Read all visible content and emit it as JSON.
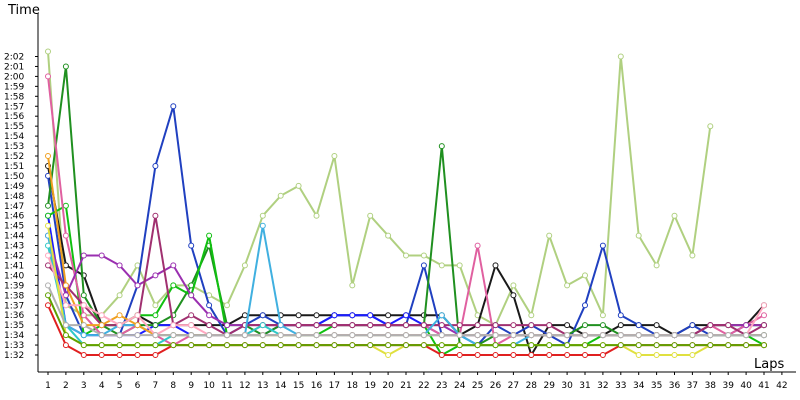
{
  "chart_data": {
    "type": "line",
    "title": "",
    "ylabel": "Time",
    "xlabel": "Laps",
    "x_ticks": [
      "1",
      "2",
      "3",
      "4",
      "5",
      "6",
      "7",
      "8",
      "9",
      "10",
      "11",
      "12",
      "13",
      "14",
      "15",
      "16",
      "17",
      "18",
      "19",
      "20",
      "21",
      "22",
      "23",
      "24",
      "25",
      "26",
      "27",
      "28",
      "29",
      "30",
      "31",
      "32",
      "33",
      "34",
      "35",
      "36",
      "37",
      "38",
      "39",
      "40",
      "41",
      "42"
    ],
    "y_ticks": [
      "1:32",
      "1:33",
      "1:34",
      "1:35",
      "1:36",
      "1:37",
      "1:38",
      "1:39",
      "1:40",
      "1:41",
      "1:42",
      "1:43",
      "1:44",
      "1:45",
      "1:46",
      "1:47",
      "1:48",
      "1:49",
      "1:50",
      "1:51",
      "1:52",
      "1:53",
      "1:54",
      "1:55",
      "1:56",
      "1:57",
      "1:58",
      "1:59",
      "2:00",
      "2:01",
      "2:02"
    ],
    "ylim": [
      91,
      123
    ],
    "xlim": [
      1,
      42
    ],
    "grid": false,
    "units": "y values in seconds (92 = 1:32)",
    "series": [
      {
        "color": "#b0d080",
        "values": [
          122.5,
          97,
          96,
          96,
          98,
          101,
          97,
          99,
          99,
          98,
          97,
          101,
          106,
          108,
          109,
          106,
          112,
          99,
          106,
          104,
          102,
          102,
          101,
          101,
          96,
          95,
          99,
          96,
          104,
          99,
          100,
          96,
          122,
          104,
          101,
          106,
          102,
          115,
          null,
          null,
          null,
          null
        ]
      },
      {
        "color": "#1a1a1a",
        "values": [
          111,
          101,
          100,
          95,
          95,
          96,
          95,
          95,
          95,
          95,
          95,
          96,
          96,
          96,
          96,
          96,
          96,
          96,
          96,
          96,
          96,
          96,
          96,
          94,
          95,
          101,
          98,
          92,
          95,
          95,
          94,
          94,
          95,
          95,
          95,
          94,
          95,
          95,
          95,
          95,
          97,
          null
        ]
      },
      {
        "color": "#2040c0",
        "values": [
          110,
          98,
          94,
          94,
          94,
          99,
          111,
          117,
          103,
          97,
          94,
          95,
          96,
          95,
          95,
          95,
          96,
          96,
          96,
          95,
          95,
          101,
          94,
          94,
          93,
          95,
          94,
          95,
          94,
          93,
          97,
          103,
          96,
          95,
          94,
          94,
          95,
          94,
          94,
          95,
          95,
          null
        ]
      },
      {
        "color": "#1c1cff",
        "values": [
          106,
          95,
          94,
          94,
          94,
          94,
          95,
          95,
          94,
          94,
          94,
          94,
          94,
          95,
          95,
          95,
          96,
          96,
          96,
          95,
          96,
          95,
          94,
          94,
          94,
          94,
          94,
          94,
          94,
          94,
          94,
          94,
          94,
          94,
          94,
          94,
          94,
          94,
          94,
          94,
          94,
          null
        ]
      },
      {
        "color": "#209020",
        "values": [
          107,
          121,
          98,
          95,
          94,
          95,
          95,
          96,
          99,
          103,
          95,
          95,
          94,
          95,
          95,
          95,
          95,
          95,
          95,
          95,
          95,
          95,
          113,
          93,
          93,
          94,
          94,
          94,
          94,
          94,
          95,
          95,
          94,
          94,
          94,
          94,
          94,
          95,
          95,
          95,
          95,
          null
        ]
      },
      {
        "color": "#10c010",
        "values": [
          106,
          107,
          94,
          95,
          95,
          96,
          96,
          99,
          98,
          104,
          94,
          94,
          94,
          94,
          94,
          94,
          95,
          95,
          95,
          95,
          95,
          95,
          92,
          93,
          93,
          93,
          93,
          93,
          93,
          93,
          93,
          94,
          94,
          94,
          94,
          94,
          94,
          94,
          94,
          94,
          93,
          null
        ]
      },
      {
        "color": "#e060a0",
        "values": [
          120,
          104,
          96,
          94,
          94,
          95,
          94,
          93,
          94,
          94,
          94,
          94,
          95,
          95,
          95,
          95,
          95,
          95,
          95,
          95,
          95,
          95,
          94,
          94,
          103,
          93,
          94,
          94,
          94,
          94,
          94,
          94,
          94,
          94,
          94,
          94,
          94,
          95,
          94,
          95,
          96,
          null
        ]
      },
      {
        "color": "#9a2fb0",
        "values": [
          104,
          98,
          102,
          102,
          101,
          99,
          100,
          101,
          98,
          96,
          95,
          95,
          95,
          95,
          95,
          95,
          95,
          95,
          95,
          95,
          95,
          95,
          95,
          94,
          94,
          94,
          94,
          94,
          94,
          94,
          94,
          94,
          94,
          94,
          94,
          94,
          94,
          95,
          95,
          95,
          95,
          null
        ]
      },
      {
        "color": "#a03070",
        "values": [
          101,
          99,
          97,
          95,
          95,
          95,
          106,
          95,
          96,
          95,
          94,
          95,
          95,
          95,
          95,
          95,
          95,
          95,
          95,
          95,
          95,
          95,
          95,
          95,
          95,
          95,
          95,
          95,
          95,
          94,
          94,
          94,
          94,
          94,
          94,
          94,
          94,
          95,
          95,
          94,
          95,
          null
        ]
      },
      {
        "color": "#40b0e0",
        "values": [
          104,
          95,
          94,
          94,
          95,
          95,
          94,
          94,
          94,
          94,
          94,
          94,
          105,
          95,
          94,
          94,
          94,
          94,
          94,
          94,
          94,
          94,
          96,
          94,
          93,
          93,
          93,
          94,
          94,
          94,
          94,
          94,
          94,
          94,
          94,
          94,
          94,
          94,
          94,
          94,
          94,
          null
        ]
      },
      {
        "color": "#30c8c8",
        "values": [
          103,
          95,
          93,
          93,
          93,
          93,
          93,
          94,
          94,
          94,
          94,
          94,
          95,
          94,
          94,
          94,
          94,
          94,
          94,
          94,
          94,
          94,
          94,
          94,
          94,
          94,
          94,
          94,
          94,
          94,
          94,
          94,
          94,
          94,
          94,
          94,
          94,
          94,
          94,
          94,
          94,
          null
        ]
      },
      {
        "color": "#f0a020",
        "values": [
          112,
          99,
          95,
          95,
          96,
          95,
          94,
          94,
          94,
          94,
          94,
          94,
          94,
          94,
          94,
          94,
          94,
          94,
          94,
          94,
          94,
          94,
          94,
          94,
          94,
          94,
          94,
          94,
          94,
          94,
          94,
          94,
          94,
          94,
          94,
          94,
          94,
          94,
          94,
          94,
          94,
          null
        ]
      },
      {
        "color": "#ffa8c0",
        "values": [
          102,
          97,
          97,
          96,
          95,
          96,
          94,
          95,
          95,
          94,
          94,
          94,
          94,
          94,
          94,
          94,
          94,
          94,
          94,
          94,
          94,
          94,
          94,
          94,
          94,
          94,
          94,
          94,
          94,
          94,
          94,
          94,
          94,
          94,
          94,
          94,
          94,
          94,
          94,
          94,
          97,
          null
        ]
      },
      {
        "color": "#e0e040",
        "values": [
          105,
          94,
          93,
          93,
          93,
          93,
          93,
          93,
          93,
          93,
          93,
          93,
          93,
          93,
          93,
          93,
          93,
          93,
          93,
          92,
          93,
          93,
          93,
          93,
          93,
          93,
          93,
          93,
          93,
          93,
          93,
          93,
          93,
          92,
          92,
          92,
          92,
          93,
          93,
          93,
          93,
          null
        ]
      },
      {
        "color": "#e02020",
        "values": [
          97,
          93,
          92,
          92,
          92,
          92,
          92,
          93,
          93,
          93,
          93,
          93,
          93,
          93,
          93,
          93,
          93,
          93,
          93,
          93,
          93,
          93,
          92,
          92,
          92,
          92,
          92,
          92,
          92,
          92,
          92,
          92,
          93,
          93,
          93,
          93,
          93,
          93,
          93,
          93,
          93,
          null
        ]
      },
      {
        "color": "#b0b0b0",
        "values": [
          99,
          95,
          95,
          94,
          94,
          94,
          94,
          94,
          94,
          94,
          94,
          94,
          94,
          94,
          94,
          94,
          94,
          94,
          94,
          94,
          94,
          94,
          94,
          94,
          94,
          94,
          94,
          94,
          94,
          94,
          94,
          94,
          94,
          94,
          94,
          94,
          94,
          94,
          94,
          94,
          94,
          null
        ]
      },
      {
        "color": "#60a000",
        "values": [
          98,
          94,
          93,
          93,
          93,
          93,
          93,
          93,
          93,
          93,
          93,
          93,
          93,
          93,
          93,
          93,
          93,
          93,
          93,
          93,
          93,
          93,
          93,
          93,
          93,
          93,
          93,
          93,
          93,
          93,
          93,
          93,
          93,
          93,
          93,
          93,
          93,
          93,
          93,
          93,
          93,
          null
        ]
      }
    ]
  }
}
